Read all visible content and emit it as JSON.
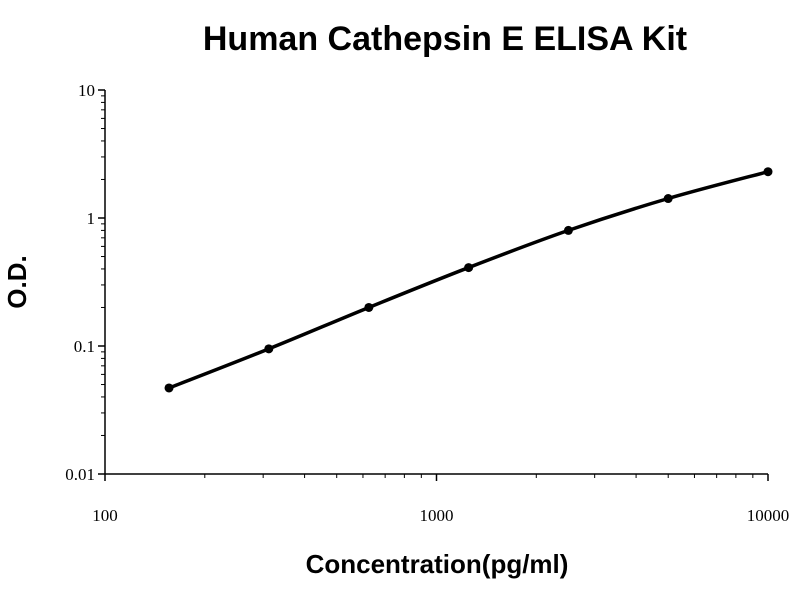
{
  "chart_data": {
    "type": "line",
    "title": "Human Cathepsin E ELISA Kit",
    "xlabel": "Concentration(pg/ml)",
    "ylabel": "O.D.",
    "x_scale": "log",
    "y_scale": "log",
    "xlim": [
      100,
      10000
    ],
    "ylim": [
      0.01,
      10
    ],
    "x_ticks": [
      {
        "value": 100,
        "label": "100"
      },
      {
        "value": 1000,
        "label": "1000"
      },
      {
        "value": 10000,
        "label": "10000"
      }
    ],
    "y_ticks": [
      {
        "value": 10,
        "label": "10"
      },
      {
        "value": 1,
        "label": "1"
      },
      {
        "value": 0.1,
        "label": "0.1"
      },
      {
        "value": 0.01,
        "label": "0.01"
      }
    ],
    "grid": false,
    "legend": "none",
    "series": [
      {
        "x": [
          156,
          312,
          625,
          1250,
          2500,
          5000,
          10000
        ],
        "y": [
          0.047,
          0.095,
          0.2,
          0.41,
          0.8,
          1.42,
          2.3
        ]
      }
    ],
    "line_color": "#000000",
    "marker_color": "#000000"
  }
}
